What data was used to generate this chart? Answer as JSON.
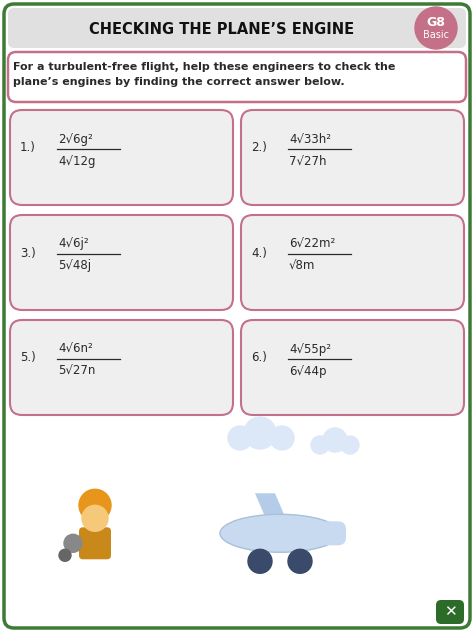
{
  "title": "CHECKING THE PLANE’S ENGINE",
  "grade_top": "G8",
  "grade_bottom": "Basic",
  "instruction": "For a turbulent-free flight, help these engineers to check the\nplane’s engines by finding the correct answer below.",
  "problems": [
    {
      "num": "1.)",
      "numerator": "2√6g²",
      "denominator": "4√12g"
    },
    {
      "num": "2.)",
      "numerator": "4√33h²",
      "denominator": "7√27h"
    },
    {
      "num": "3.)",
      "numerator": "4√6j²",
      "denominator": "5√48j"
    },
    {
      "num": "4.)",
      "numerator": "6√22m²",
      "denominator": "√8m"
    },
    {
      "num": "5.)",
      "numerator": "4√6n²",
      "denominator": "5√27n"
    },
    {
      "num": "6.)",
      "numerator": "4√55p²",
      "denominator": "6√44p"
    }
  ],
  "bg_color": "#ffffff",
  "outer_border_color": "#3d7a35",
  "title_bg_color": "#e0e0e0",
  "box_bg_color": "#efefef",
  "box_border_color": "#c47088",
  "instruction_border_color": "#c47088",
  "grade_circle_color": "#c47088",
  "title_color": "#111111",
  "text_color": "#2a2a2a",
  "fraction_line_color": "#2a2a2a",
  "xmark_bg": "#2d6b28"
}
